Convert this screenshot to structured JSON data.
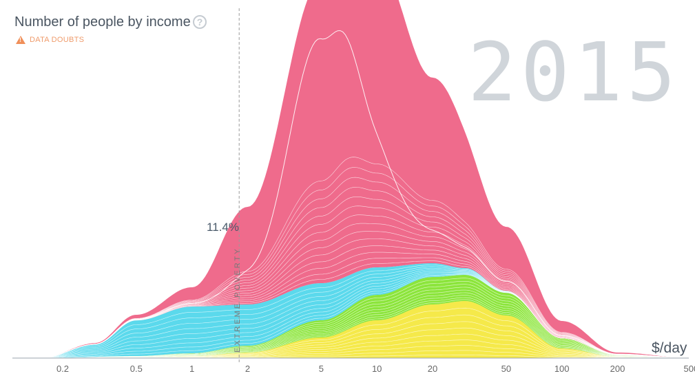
{
  "header": {
    "title": "Number of people by income",
    "help_icon": "question-circle-icon",
    "data_doubts": "DATA DOUBTS",
    "data_doubts_icon": "warning-icon"
  },
  "year": "2015",
  "poverty_line": {
    "value": 1.8,
    "label": "EXTREME POVERTY",
    "percent": "11.4%"
  },
  "chart_data": {
    "type": "area",
    "stacked": true,
    "xscale": "log",
    "xlabel": "$/day",
    "xlim": [
      0.11,
      500
    ],
    "xticks": [
      0.2,
      0.5,
      1,
      2,
      5,
      10,
      20,
      50,
      100,
      200,
      500
    ],
    "xtick_labels": [
      "0.2",
      "0.5",
      "1",
      "2",
      "5",
      "10",
      "20",
      "50",
      "100",
      "200",
      "500"
    ],
    "grid": false,
    "series": [
      {
        "color": "#f5e94a",
        "x": [
          0.15,
          0.5,
          1,
          2,
          5,
          10,
          20,
          30,
          50,
          100,
          200,
          500
        ],
        "values": [
          0,
          1,
          3,
          8,
          30,
          55,
          78,
          83,
          62,
          14,
          2,
          0
        ]
      },
      {
        "color": "#8ce53c",
        "x": [
          0.15,
          0.5,
          1,
          2,
          5,
          10,
          20,
          30,
          50,
          100,
          200,
          500
        ],
        "values": [
          0,
          2,
          4,
          10,
          25,
          37,
          40,
          38,
          33,
          15,
          3,
          0
        ]
      },
      {
        "color": "#5bd9ec",
        "x": [
          0.15,
          0.3,
          0.5,
          1,
          2,
          5,
          10,
          20,
          30,
          50,
          100,
          200,
          500
        ],
        "values": [
          0,
          18,
          52,
          68,
          60,
          54,
          40,
          20,
          10,
          3,
          0,
          0,
          0
        ]
      },
      {
        "color": "#ef6b8c",
        "x": [
          0.15,
          0.3,
          0.5,
          1,
          2,
          5,
          7,
          10,
          20,
          50,
          100,
          200,
          500
        ],
        "values": [
          0,
          2,
          8,
          28,
          142,
          440,
          505,
          445,
          270,
          93,
          25,
          3,
          0
        ]
      }
    ]
  }
}
